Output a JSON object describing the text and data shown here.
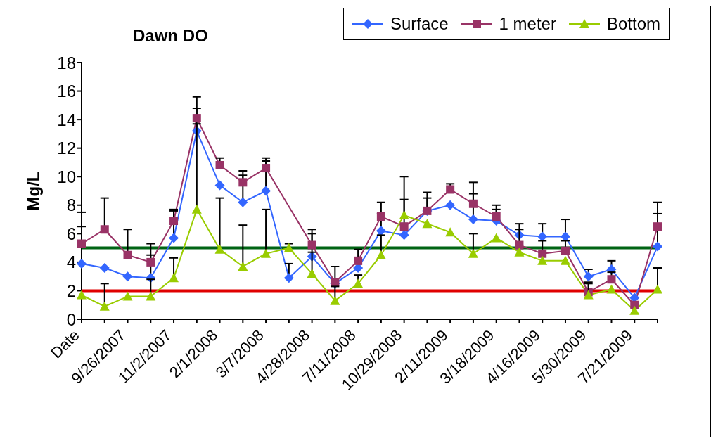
{
  "chart_data": {
    "type": "line",
    "title": "Dawn DO",
    "ylabel": "Mg/L",
    "categories": [
      "Date",
      null,
      "9/26/2007",
      null,
      "11/2/2007",
      null,
      "2/1/2008",
      null,
      "3/7/2008",
      null,
      "4/28/2008",
      null,
      "7/11/2008",
      null,
      "10/29/2008",
      null,
      "2/11/2009",
      null,
      "3/18/2009",
      null,
      "4/16/2009",
      null,
      "5/30/2009",
      null,
      "7/21/2009",
      null
    ],
    "series": [
      {
        "name": "Surface",
        "color": "#3366ff",
        "marker": "diamond",
        "values": [
          3.9,
          3.6,
          3.0,
          2.9,
          5.7,
          13.2,
          9.4,
          8.2,
          9.0,
          2.9,
          4.4,
          2.5,
          3.6,
          6.2,
          5.9,
          7.6,
          8.0,
          7.0,
          6.9,
          5.9,
          5.8,
          5.8,
          3.0,
          3.5,
          1.5,
          5.1
        ],
        "errors": [
          [
            3.9,
            6.5
          ],
          null,
          null,
          [
            2.9,
            4.5
          ],
          [
            5.7,
            7.6
          ],
          [
            13.2,
            14.8
          ],
          null,
          [
            8.2,
            10.1
          ],
          [
            9.0,
            11.1
          ],
          [
            2.9,
            3.9
          ],
          [
            4.4,
            6.0
          ],
          null,
          null,
          [
            6.2,
            7.4
          ],
          null,
          [
            7.6,
            8.5
          ],
          null,
          [
            7.0,
            8.8
          ],
          [
            6.9,
            7.7
          ],
          [
            5.9,
            6.7
          ],
          [
            5.8,
            6.7
          ],
          [
            5.8,
            7.0
          ],
          [
            3.0,
            3.5
          ],
          [
            3.5,
            4.1
          ],
          null,
          [
            5.1,
            7.4
          ]
        ]
      },
      {
        "name": "1 meter",
        "color": "#993366",
        "marker": "square",
        "values": [
          5.3,
          6.3,
          4.5,
          4.0,
          6.9,
          14.1,
          10.8,
          9.6,
          10.6,
          null,
          5.2,
          2.6,
          4.1,
          7.2,
          6.5,
          7.6,
          9.1,
          8.1,
          7.2,
          5.2,
          4.6,
          4.8,
          1.9,
          2.8,
          1.0,
          6.5
        ],
        "errors": [
          [
            5.3,
            7.5
          ],
          [
            6.3,
            8.5
          ],
          [
            4.5,
            6.3
          ],
          [
            4.0,
            5.3
          ],
          [
            6.9,
            7.7
          ],
          [
            14.1,
            15.6
          ],
          [
            10.8,
            11.3
          ],
          [
            9.6,
            10.4
          ],
          [
            10.6,
            11.3
          ],
          null,
          [
            5.2,
            6.3
          ],
          [
            2.6,
            3.7
          ],
          [
            4.1,
            4.9
          ],
          [
            7.2,
            8.2
          ],
          [
            6.5,
            8.4
          ],
          [
            7.6,
            8.9
          ],
          [
            9.1,
            9.5
          ],
          [
            8.1,
            9.6
          ],
          [
            7.2,
            8.0
          ],
          [
            5.2,
            6.3
          ],
          [
            4.6,
            5.5
          ],
          [
            4.8,
            5.5
          ],
          [
            1.9,
            2.6
          ],
          [
            2.8,
            3.3
          ],
          null,
          [
            6.5,
            8.2
          ]
        ]
      },
      {
        "name": "Bottom",
        "color": "#99cc00",
        "marker": "triangle",
        "values": [
          1.7,
          0.9,
          1.6,
          1.6,
          2.9,
          7.7,
          4.9,
          3.7,
          4.6,
          5.0,
          3.2,
          1.3,
          2.5,
          4.5,
          7.3,
          6.7,
          6.1,
          4.6,
          5.7,
          4.7,
          4.1,
          4.1,
          1.7,
          2.1,
          0.6,
          2.1
        ],
        "errors": [
          null,
          [
            0.9,
            2.5
          ],
          null,
          [
            1.6,
            2.8
          ],
          [
            2.9,
            4.3
          ],
          [
            7.7,
            13.7
          ],
          [
            4.9,
            8.5
          ],
          [
            3.7,
            6.6
          ],
          [
            4.6,
            7.7
          ],
          [
            5.0,
            5.3
          ],
          [
            3.2,
            4.7
          ],
          [
            1.3,
            2.3
          ],
          [
            2.5,
            3.1
          ],
          [
            4.5,
            5.9
          ],
          [
            7.3,
            10.0
          ],
          null,
          null,
          [
            4.6,
            6.0
          ],
          null,
          null,
          null,
          null,
          [
            1.7,
            2.5
          ],
          null,
          null,
          [
            2.1,
            3.6
          ]
        ]
      }
    ],
    "ylim": [
      0,
      18
    ],
    "yticks": [
      0,
      2,
      4,
      6,
      8,
      10,
      12,
      14,
      16,
      18
    ],
    "ref_lines": [
      {
        "axis": "y",
        "value": 5,
        "color": "#006414"
      },
      {
        "axis": "y",
        "value": 2,
        "color": "#e00000"
      }
    ],
    "grid": false,
    "legend": "top right"
  }
}
